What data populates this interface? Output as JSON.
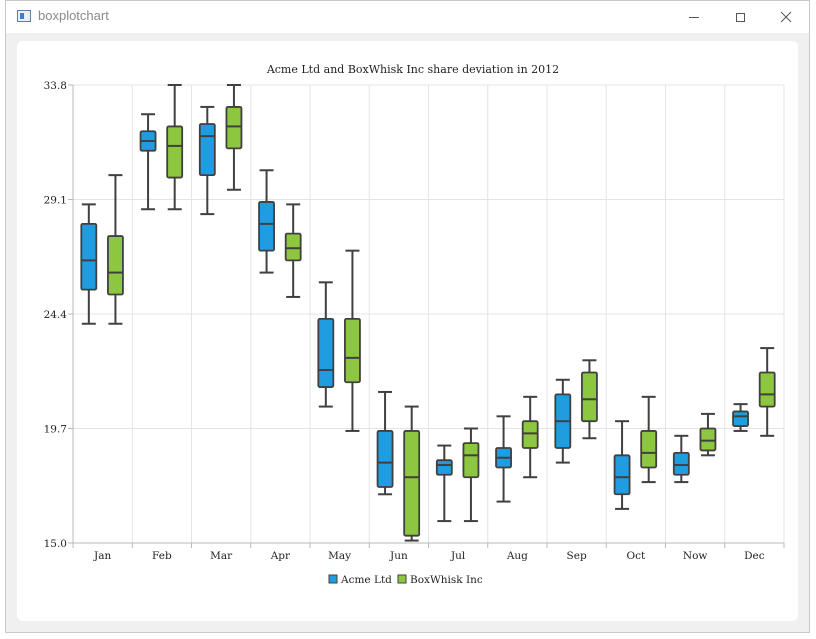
{
  "window": {
    "title": "boxplotchart",
    "icon": "app-window-icon",
    "controls": {
      "minimize": "minimize-icon",
      "maximize": "maximize-icon",
      "close": "close-icon"
    }
  },
  "colors": {
    "series1": "#1f9de0",
    "series2": "#8dc63f",
    "stroke": "#404040",
    "grid": "#e4e4e4",
    "axis": "#b8b8b8",
    "text": "#222222"
  },
  "chart_data": {
    "type": "boxplot",
    "title": "Acme Ltd and BoxWhisk Inc share deviation in 2012",
    "xlabel": "",
    "ylabel": "",
    "ylim": [
      15.0,
      33.8
    ],
    "yticks": [
      "15.0",
      "19.7",
      "24.4",
      "29.1",
      "33.8"
    ],
    "categories": [
      "Jan",
      "Feb",
      "Mar",
      "Apr",
      "May",
      "Jun",
      "Jul",
      "Aug",
      "Sep",
      "Oct",
      "Now",
      "Dec"
    ],
    "grid": true,
    "legend_position": "bottom",
    "series": [
      {
        "name": "Acme Ltd",
        "boxes": [
          {
            "low": 24.0,
            "q1": 25.4,
            "median": 26.6,
            "q3": 28.1,
            "high": 28.9
          },
          {
            "low": 28.7,
            "q1": 31.1,
            "median": 31.5,
            "q3": 31.9,
            "high": 32.6
          },
          {
            "low": 28.5,
            "q1": 30.1,
            "median": 31.7,
            "q3": 32.2,
            "high": 32.9
          },
          {
            "low": 26.1,
            "q1": 27.0,
            "median": 28.1,
            "q3": 29.0,
            "high": 30.3
          },
          {
            "low": 20.6,
            "q1": 21.4,
            "median": 22.1,
            "q3": 24.2,
            "high": 25.7
          },
          {
            "low": 17.0,
            "q1": 17.3,
            "median": 18.3,
            "q3": 19.6,
            "high": 21.2
          },
          {
            "low": 15.9,
            "q1": 17.8,
            "median": 18.2,
            "q3": 18.4,
            "high": 19.0
          },
          {
            "low": 16.7,
            "q1": 18.1,
            "median": 18.5,
            "q3": 18.9,
            "high": 20.2
          },
          {
            "low": 18.3,
            "q1": 18.9,
            "median": 20.0,
            "q3": 21.1,
            "high": 21.7
          },
          {
            "low": 16.4,
            "q1": 17.0,
            "median": 17.7,
            "q3": 18.6,
            "high": 20.0
          },
          {
            "low": 17.5,
            "q1": 17.8,
            "median": 18.2,
            "q3": 18.7,
            "high": 19.4
          },
          {
            "low": 19.6,
            "q1": 19.8,
            "median": 20.2,
            "q3": 20.4,
            "high": 20.7
          }
        ]
      },
      {
        "name": "BoxWhisk Inc",
        "boxes": [
          {
            "low": 24.0,
            "q1": 25.2,
            "median": 26.1,
            "q3": 27.6,
            "high": 30.1
          },
          {
            "low": 28.7,
            "q1": 30.0,
            "median": 31.3,
            "q3": 32.1,
            "high": 33.8
          },
          {
            "low": 29.5,
            "q1": 31.2,
            "median": 32.1,
            "q3": 32.9,
            "high": 33.8
          },
          {
            "low": 25.1,
            "q1": 26.6,
            "median": 27.1,
            "q3": 27.7,
            "high": 28.9
          },
          {
            "low": 19.6,
            "q1": 21.6,
            "median": 22.6,
            "q3": 24.2,
            "high": 27.0
          },
          {
            "low": 15.1,
            "q1": 15.3,
            "median": 17.7,
            "q3": 19.6,
            "high": 20.6
          },
          {
            "low": 15.9,
            "q1": 17.7,
            "median": 18.6,
            "q3": 19.1,
            "high": 19.7
          },
          {
            "low": 17.7,
            "q1": 18.9,
            "median": 19.5,
            "q3": 20.0,
            "high": 21.0
          },
          {
            "low": 19.3,
            "q1": 20.0,
            "median": 20.9,
            "q3": 22.0,
            "high": 22.5
          },
          {
            "low": 17.5,
            "q1": 18.1,
            "median": 18.7,
            "q3": 19.6,
            "high": 21.0
          },
          {
            "low": 18.6,
            "q1": 18.8,
            "median": 19.2,
            "q3": 19.7,
            "high": 20.3
          },
          {
            "low": 19.4,
            "q1": 20.6,
            "median": 21.1,
            "q3": 22.0,
            "high": 23.0
          }
        ]
      }
    ]
  }
}
